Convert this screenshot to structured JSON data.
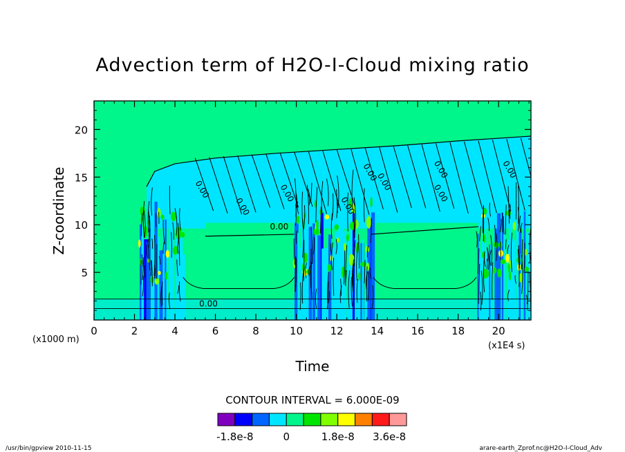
{
  "chart_data": {
    "type": "heatmap",
    "title": "Advection term of H2O-I-Cloud mixing ratio",
    "xlabel": "Time",
    "ylabel": "Z-coordinate",
    "x_unit_label": "(x1E4 s)",
    "y_unit_label": "(x1000 m)",
    "xlim": [
      0,
      21.6
    ],
    "ylim": [
      0,
      23
    ],
    "x_ticks": [
      0,
      2,
      4,
      6,
      8,
      10,
      12,
      14,
      16,
      18,
      20
    ],
    "x_tick_labels": [
      "0",
      "2",
      "4",
      "6",
      "8",
      "10",
      "12",
      "14",
      "16",
      "18",
      "20"
    ],
    "y_ticks": [
      5,
      10,
      15,
      20
    ],
    "y_tick_labels": [
      "5",
      "10",
      "15",
      "20"
    ],
    "contour_interval_text": "CONTOUR INTERVAL = 6.000E-09",
    "contour_labels": [
      "0.00",
      "0.00",
      "0.00",
      "0.00",
      "0.00",
      "0.00",
      "0.00",
      "0.00",
      "0.00",
      "0.00",
      "0.00"
    ],
    "colorbar": {
      "levels": [
        -2.4e-08,
        -1.8e-08,
        -1.2e-08,
        -6e-09,
        0,
        6e-09,
        1.2e-08,
        1.8e-08,
        2.4e-08,
        3e-08,
        3.6e-08,
        4.2e-08
      ],
      "colors": [
        "#7f00bf",
        "#0000ff",
        "#0066ff",
        "#00e5ff",
        "#00f58a",
        "#00e600",
        "#7fff00",
        "#ffff00",
        "#ff8000",
        "#ff1a1a",
        "#ff9999"
      ],
      "tick_labels": [
        {
          "value": -1.8e-08,
          "label": "-1.8e-8"
        },
        {
          "value": 0,
          "label": "0"
        },
        {
          "value": 1.8e-08,
          "label": "1.8e-8"
        },
        {
          "value": 3.6e-08,
          "label": "3.6e-8"
        }
      ]
    },
    "background_color": "#00f58a",
    "regions": {
      "cloud_top_curve": [
        [
          2.6,
          14.0
        ],
        [
          3.0,
          15.6
        ],
        [
          4.0,
          16.4
        ],
        [
          6.0,
          17.0
        ],
        [
          9.0,
          17.5
        ],
        [
          12.0,
          17.9
        ],
        [
          15.0,
          18.3
        ],
        [
          18.0,
          18.8
        ],
        [
          21.6,
          19.3
        ]
      ],
      "cloud_base_segments": [
        [
          [
            5.5,
            8.8
          ],
          [
            9.9,
            9.0
          ]
        ],
        [
          [
            13.7,
            9.0
          ],
          [
            19.0,
            9.8
          ]
        ]
      ],
      "convective_bursts": [
        {
          "x0": 2.2,
          "x1": 4.4,
          "top": 12.5
        },
        {
          "x0": 9.9,
          "x1": 13.8,
          "top": 13.5
        },
        {
          "x0": 18.9,
          "x1": 21.6,
          "top": 12.5
        }
      ],
      "low_band_top": 2.2
    }
  },
  "footer": {
    "left": "/usr/bin/gpview   2010-11-15",
    "right": "arare-earth_Zprof.nc@H2O-I-Cloud_Adv"
  }
}
